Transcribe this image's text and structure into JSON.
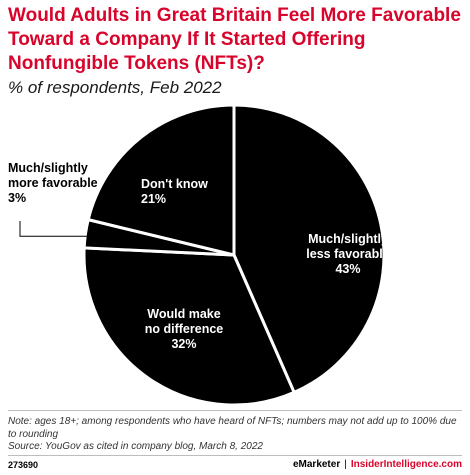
{
  "title": "Would Adults in Great Britain Feel More Favorable Toward a Company If It Started Offering Nonfungible Tokens (NFTs)?",
  "subtitle": "% of respondents, Feb 2022",
  "chart_data": {
    "type": "pie",
    "title": "Would Adults in Great Britain Feel More Favorable Toward a Company If It Started Offering Nonfungible Tokens (NFTs)?",
    "unit": "% of respondents",
    "categories": [
      "Much/slightly less favorable",
      "Would make no difference",
      "Much/slightly more favorable",
      "Don't know"
    ],
    "values": [
      43,
      32,
      3,
      21
    ],
    "display_values": [
      "43%",
      "32%",
      "3%",
      "21%"
    ],
    "label_lines": [
      [
        "Much/slightly",
        "less favorable",
        "43%"
      ],
      [
        "Would make",
        "no difference",
        "32%"
      ],
      [
        "Much/slightly",
        "more favorable",
        "3%"
      ],
      [
        "Don't know",
        "21%"
      ]
    ],
    "colors": {
      "slice": "#000000",
      "edge": "#ffffff",
      "label_inside": "#ffffff",
      "label_outside": "#000000"
    }
  },
  "notes": {
    "note": "Note: ages 18+; among respondents who have heard of NFTs; numbers may not add up to 100% due to rounding",
    "source": "Source: YouGov as cited in company blog, March 8, 2022"
  },
  "footer": {
    "chart_id": "273690",
    "brand": "eMarketer",
    "separator": "|",
    "brand2": "InsiderIntelligence.com"
  },
  "colors": {
    "accent": "#d9042b",
    "text": "#000000",
    "divider": "#bdbdbd"
  }
}
